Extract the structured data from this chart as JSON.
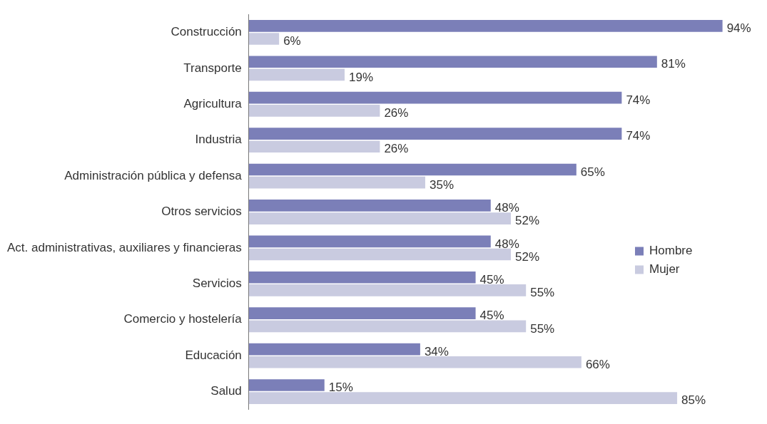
{
  "chart_data": {
    "type": "bar",
    "orientation": "horizontal",
    "categories": [
      "Construcción",
      "Transporte",
      "Agricultura",
      "Industria",
      "Administración pública y defensa",
      "Otros servicios",
      "Act. administrativas, auxiliares y financieras",
      "Servicios",
      "Comercio y hostelería",
      "Educación",
      "Salud"
    ],
    "series": [
      {
        "name": "Hombre",
        "color": "#7b7fb8",
        "values": [
          94,
          81,
          74,
          74,
          65,
          48,
          48,
          45,
          45,
          34,
          15
        ],
        "value_labels": [
          "94%",
          "81%",
          "74%",
          "74%",
          "65%",
          "48%",
          "48%",
          "45%",
          "45%",
          "34%",
          "15%"
        ]
      },
      {
        "name": "Mujer",
        "color": "#c9cbe0",
        "values": [
          6,
          19,
          26,
          26,
          35,
          52,
          52,
          55,
          55,
          66,
          85
        ],
        "value_labels": [
          "6%",
          "19%",
          "26%",
          "26%",
          "35%",
          "52%",
          "52%",
          "55%",
          "55%",
          "66%",
          "85%"
        ]
      }
    ],
    "legend": "right"
  }
}
